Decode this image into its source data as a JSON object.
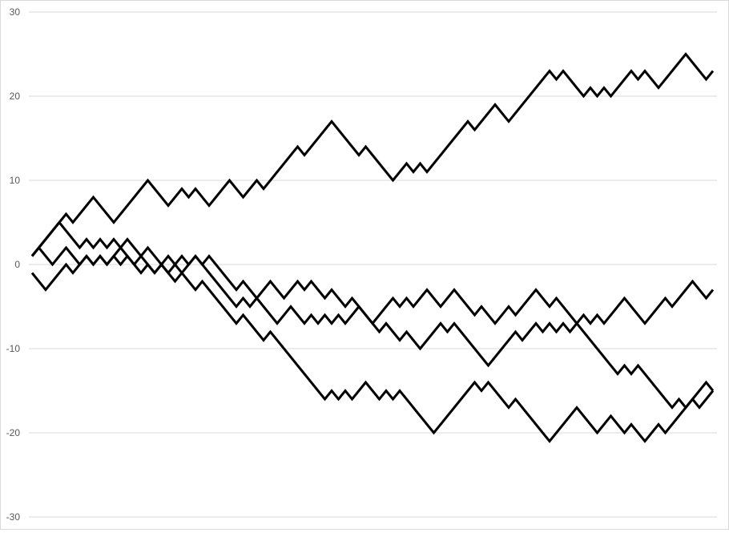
{
  "chart_data": {
    "type": "line",
    "title": "",
    "xlabel": "",
    "ylabel": "",
    "ylim": [
      -30,
      30
    ],
    "yticks": [
      "30",
      "20",
      "10",
      "0",
      "-10",
      "-20",
      "-30"
    ],
    "ytick_values": [
      30,
      20,
      10,
      0,
      -10,
      -20,
      -30
    ],
    "grid": true,
    "legend": "none",
    "line_color": "#000000",
    "grid_color": "#d9d9d9",
    "x": "step index 0-100 (no x-axis labels shown)",
    "series": [
      {
        "values": [
          1,
          2,
          3,
          4,
          5,
          6,
          5,
          6,
          7,
          8,
          7,
          6,
          5,
          6,
          7,
          8,
          9,
          10,
          9,
          8,
          7,
          8,
          9,
          8,
          9,
          8,
          7,
          8,
          9,
          10,
          9,
          8,
          9,
          10,
          9,
          10,
          11,
          12,
          13,
          14,
          13,
          14,
          15,
          16,
          17,
          16,
          15,
          14,
          13,
          14,
          13,
          12,
          11,
          10,
          11,
          12,
          11,
          12,
          11,
          12,
          13,
          14,
          15,
          16,
          17,
          16,
          17,
          18,
          19,
          18,
          17,
          18,
          19,
          20,
          21,
          22,
          23,
          22,
          23,
          22,
          21,
          20,
          21,
          20,
          21,
          20,
          21,
          22,
          23,
          22,
          23,
          22,
          21,
          22,
          23,
          24,
          25,
          24,
          23,
          22,
          23
        ]
      },
      {
        "values": [
          1,
          2,
          3,
          4,
          5,
          4,
          3,
          2,
          3,
          2,
          3,
          2,
          3,
          2,
          1,
          0,
          1,
          2,
          1,
          0,
          -1,
          0,
          1,
          0,
          1,
          0,
          1,
          0,
          -1,
          -2,
          -3,
          -2,
          -3,
          -4,
          -5,
          -6,
          -7,
          -6,
          -5,
          -6,
          -7,
          -6,
          -7,
          -6,
          -7,
          -6,
          -7,
          -6,
          -5,
          -6,
          -7,
          -6,
          -5,
          -4,
          -5,
          -4,
          -5,
          -4,
          -3,
          -4,
          -5,
          -4,
          -3,
          -4,
          -5,
          -6,
          -5,
          -6,
          -7,
          -6,
          -5,
          -6,
          -5,
          -4,
          -3,
          -4,
          -5,
          -4,
          -5,
          -6,
          -7,
          -8,
          -9,
          -10,
          -11,
          -12,
          -13,
          -12,
          -13,
          -12,
          -13,
          -14,
          -15,
          -16,
          -17,
          -16,
          -17,
          -16,
          -15,
          -14,
          -15
        ]
      },
      {
        "values": [
          1,
          2,
          1,
          0,
          1,
          2,
          1,
          0,
          1,
          0,
          1,
          0,
          1,
          2,
          3,
          2,
          1,
          0,
          -1,
          0,
          1,
          0,
          -1,
          0,
          1,
          0,
          -1,
          -2,
          -3,
          -4,
          -5,
          -4,
          -5,
          -4,
          -3,
          -2,
          -3,
          -4,
          -3,
          -2,
          -3,
          -2,
          -3,
          -4,
          -3,
          -4,
          -5,
          -4,
          -5,
          -6,
          -7,
          -8,
          -7,
          -8,
          -9,
          -8,
          -9,
          -10,
          -9,
          -8,
          -7,
          -8,
          -7,
          -8,
          -9,
          -10,
          -11,
          -12,
          -11,
          -10,
          -9,
          -8,
          -9,
          -8,
          -7,
          -8,
          -7,
          -8,
          -7,
          -8,
          -7,
          -6,
          -7,
          -6,
          -7,
          -6,
          -5,
          -4,
          -5,
          -6,
          -7,
          -6,
          -5,
          -4,
          -5,
          -4,
          -3,
          -2,
          -3,
          -4,
          -3
        ]
      },
      {
        "values": [
          -1,
          -2,
          -3,
          -2,
          -1,
          0,
          -1,
          0,
          1,
          0,
          1,
          0,
          1,
          0,
          1,
          0,
          -1,
          0,
          -1,
          0,
          -1,
          -2,
          -1,
          -2,
          -3,
          -2,
          -3,
          -4,
          -5,
          -6,
          -7,
          -6,
          -7,
          -8,
          -9,
          -8,
          -9,
          -10,
          -11,
          -12,
          -13,
          -14,
          -15,
          -16,
          -15,
          -16,
          -15,
          -16,
          -15,
          -14,
          -15,
          -16,
          -15,
          -16,
          -15,
          -16,
          -17,
          -18,
          -19,
          -20,
          -19,
          -18,
          -17,
          -16,
          -15,
          -14,
          -15,
          -14,
          -15,
          -16,
          -17,
          -16,
          -17,
          -18,
          -19,
          -20,
          -21,
          -20,
          -19,
          -18,
          -17,
          -18,
          -19,
          -20,
          -19,
          -18,
          -19,
          -20,
          -19,
          -20,
          -21,
          -20,
          -19,
          -20,
          -19,
          -18,
          -17,
          -16,
          -17,
          -16,
          -15
        ]
      }
    ]
  }
}
